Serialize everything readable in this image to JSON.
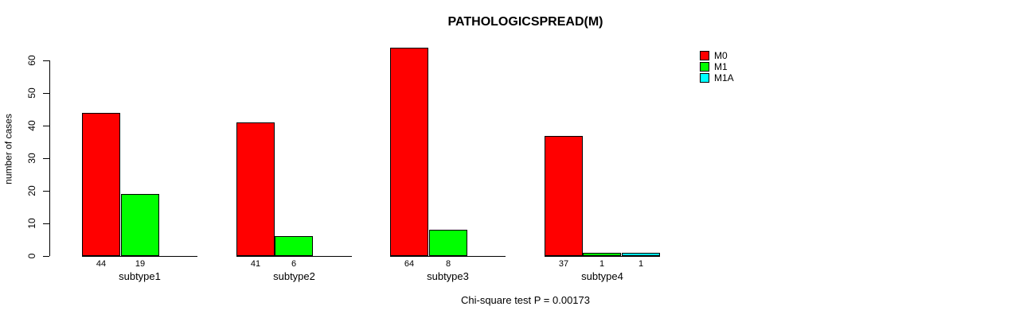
{
  "chart_data": {
    "type": "bar",
    "title": "PATHOLOGICSPREAD(M)",
    "ylabel": "number of cases",
    "caption": "Chi-square test P = 0.00173",
    "categories": [
      "subtype1",
      "subtype2",
      "subtype3",
      "subtype4"
    ],
    "series": [
      {
        "name": "M0",
        "color": "#ff0000",
        "values": [
          44,
          41,
          64,
          37
        ]
      },
      {
        "name": "M1",
        "color": "#00ff00",
        "values": [
          19,
          6,
          8,
          1
        ]
      },
      {
        "name": "M1A",
        "color": "#00ffff",
        "values": [
          0,
          0,
          0,
          1
        ]
      }
    ],
    "y_ticks": [
      0,
      10,
      20,
      30,
      40,
      50,
      60
    ],
    "ylim": [
      0,
      60
    ],
    "grid": false,
    "legend_position": "top-right",
    "value_labels_shown_when_positive": true,
    "axis_color": "#000000",
    "background_color": "#ffffff"
  }
}
